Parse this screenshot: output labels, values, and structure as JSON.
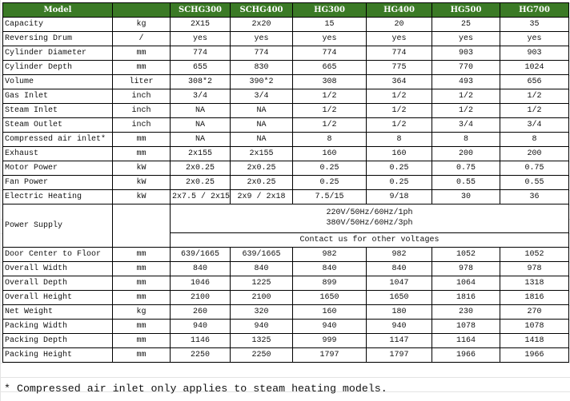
{
  "header": {
    "model_label": "Model",
    "models": [
      "SCHG300",
      "SCHG400",
      "HG300",
      "HG400",
      "HG500",
      "HG700"
    ]
  },
  "rows_top": [
    {
      "label": "Capacity",
      "unit": "kg",
      "values": [
        "2X15",
        "2x20",
        "15",
        "20",
        "25",
        "35"
      ]
    },
    {
      "label": "Reversing Drum",
      "unit": "/",
      "values": [
        "yes",
        "yes",
        "yes",
        "yes",
        "yes",
        "yes"
      ]
    },
    {
      "label": "Cylinder Diameter",
      "unit": "mm",
      "values": [
        "774",
        "774",
        "774",
        "774",
        "903",
        "903"
      ]
    },
    {
      "label": "Cylinder Depth",
      "unit": "mm",
      "values": [
        "655",
        "830",
        "665",
        "775",
        "770",
        "1024"
      ]
    },
    {
      "label": "Volume",
      "unit": "liter",
      "values": [
        "308*2",
        "390*2",
        "308",
        "364",
        "493",
        "656"
      ]
    },
    {
      "label": "Gas Inlet",
      "unit": "inch",
      "values": [
        "3/4",
        "3/4",
        "1/2",
        "1/2",
        "1/2",
        "1/2"
      ]
    },
    {
      "label": "Steam Inlet",
      "unit": "inch",
      "values": [
        "NA",
        "NA",
        "1/2",
        "1/2",
        "1/2",
        "1/2"
      ]
    },
    {
      "label": "Steam Outlet",
      "unit": "inch",
      "values": [
        "NA",
        "NA",
        "1/2",
        "1/2",
        "3/4",
        "3/4"
      ]
    },
    {
      "label": "Compressed air inlet*",
      "unit": "mm",
      "values": [
        "NA",
        "NA",
        "8",
        "8",
        "8",
        "8"
      ]
    },
    {
      "label": "Exhaust",
      "unit": "mm",
      "values": [
        "2x155",
        "2x155",
        "160",
        "160",
        "200",
        "200"
      ]
    },
    {
      "label": "Motor Power",
      "unit": "kW",
      "values": [
        "2x0.25",
        "2x0.25",
        "0.25",
        "0.25",
        "0.75",
        "0.75"
      ]
    },
    {
      "label": "Fan Power",
      "unit": "kW",
      "values": [
        "2x0.25",
        "2x0.25",
        "0.25",
        "0.25",
        "0.55",
        "0.55"
      ]
    },
    {
      "label": "Electric Heating",
      "unit": "kW",
      "values": [
        "2x7.5 / 2x15",
        "2x9 / 2x18",
        "7.5/15",
        "9/18",
        "30",
        "36"
      ]
    }
  ],
  "power_supply": {
    "label": "Power Supply",
    "unit": "",
    "line1": "220V/50Hz/60Hz/1ph",
    "line2": "380V/50Hz/60Hz/3ph",
    "note": "Contact us for other voltages"
  },
  "rows_bottom": [
    {
      "label": "Door Center to Floor",
      "unit": "mm",
      "values": [
        "639/1665",
        "639/1665",
        "982",
        "982",
        "1052",
        "1052"
      ]
    },
    {
      "label": "Overall Width",
      "unit": "mm",
      "values": [
        "840",
        "840",
        "840",
        "840",
        "978",
        "978"
      ]
    },
    {
      "label": "Overall Depth",
      "unit": "mm",
      "values": [
        "1046",
        "1225",
        "899",
        "1047",
        "1064",
        "1318"
      ]
    },
    {
      "label": "Overall Height",
      "unit": "mm",
      "values": [
        "2100",
        "2100",
        "1650",
        "1650",
        "1816",
        "1816"
      ]
    },
    {
      "label": "Net Weight",
      "unit": "kg",
      "values": [
        "260",
        "320",
        "160",
        "180",
        "230",
        "270"
      ]
    },
    {
      "label": "Packing Width",
      "unit": "mm",
      "values": [
        "940",
        "940",
        "940",
        "940",
        "1078",
        "1078"
      ]
    },
    {
      "label": "Packing Depth",
      "unit": "mm",
      "values": [
        "1146",
        "1325",
        "999",
        "1147",
        "1164",
        "1418"
      ]
    },
    {
      "label": "Packing Height",
      "unit": "mm",
      "values": [
        "2250",
        "2250",
        "1797",
        "1797",
        "1966",
        "1966"
      ]
    }
  ],
  "footnote": "* Compressed air inlet only applies to steam heating models.",
  "colors": {
    "header_bg": "#3b7a26",
    "header_text": "#ffffff",
    "comment_marker": "#1a8a1a"
  }
}
